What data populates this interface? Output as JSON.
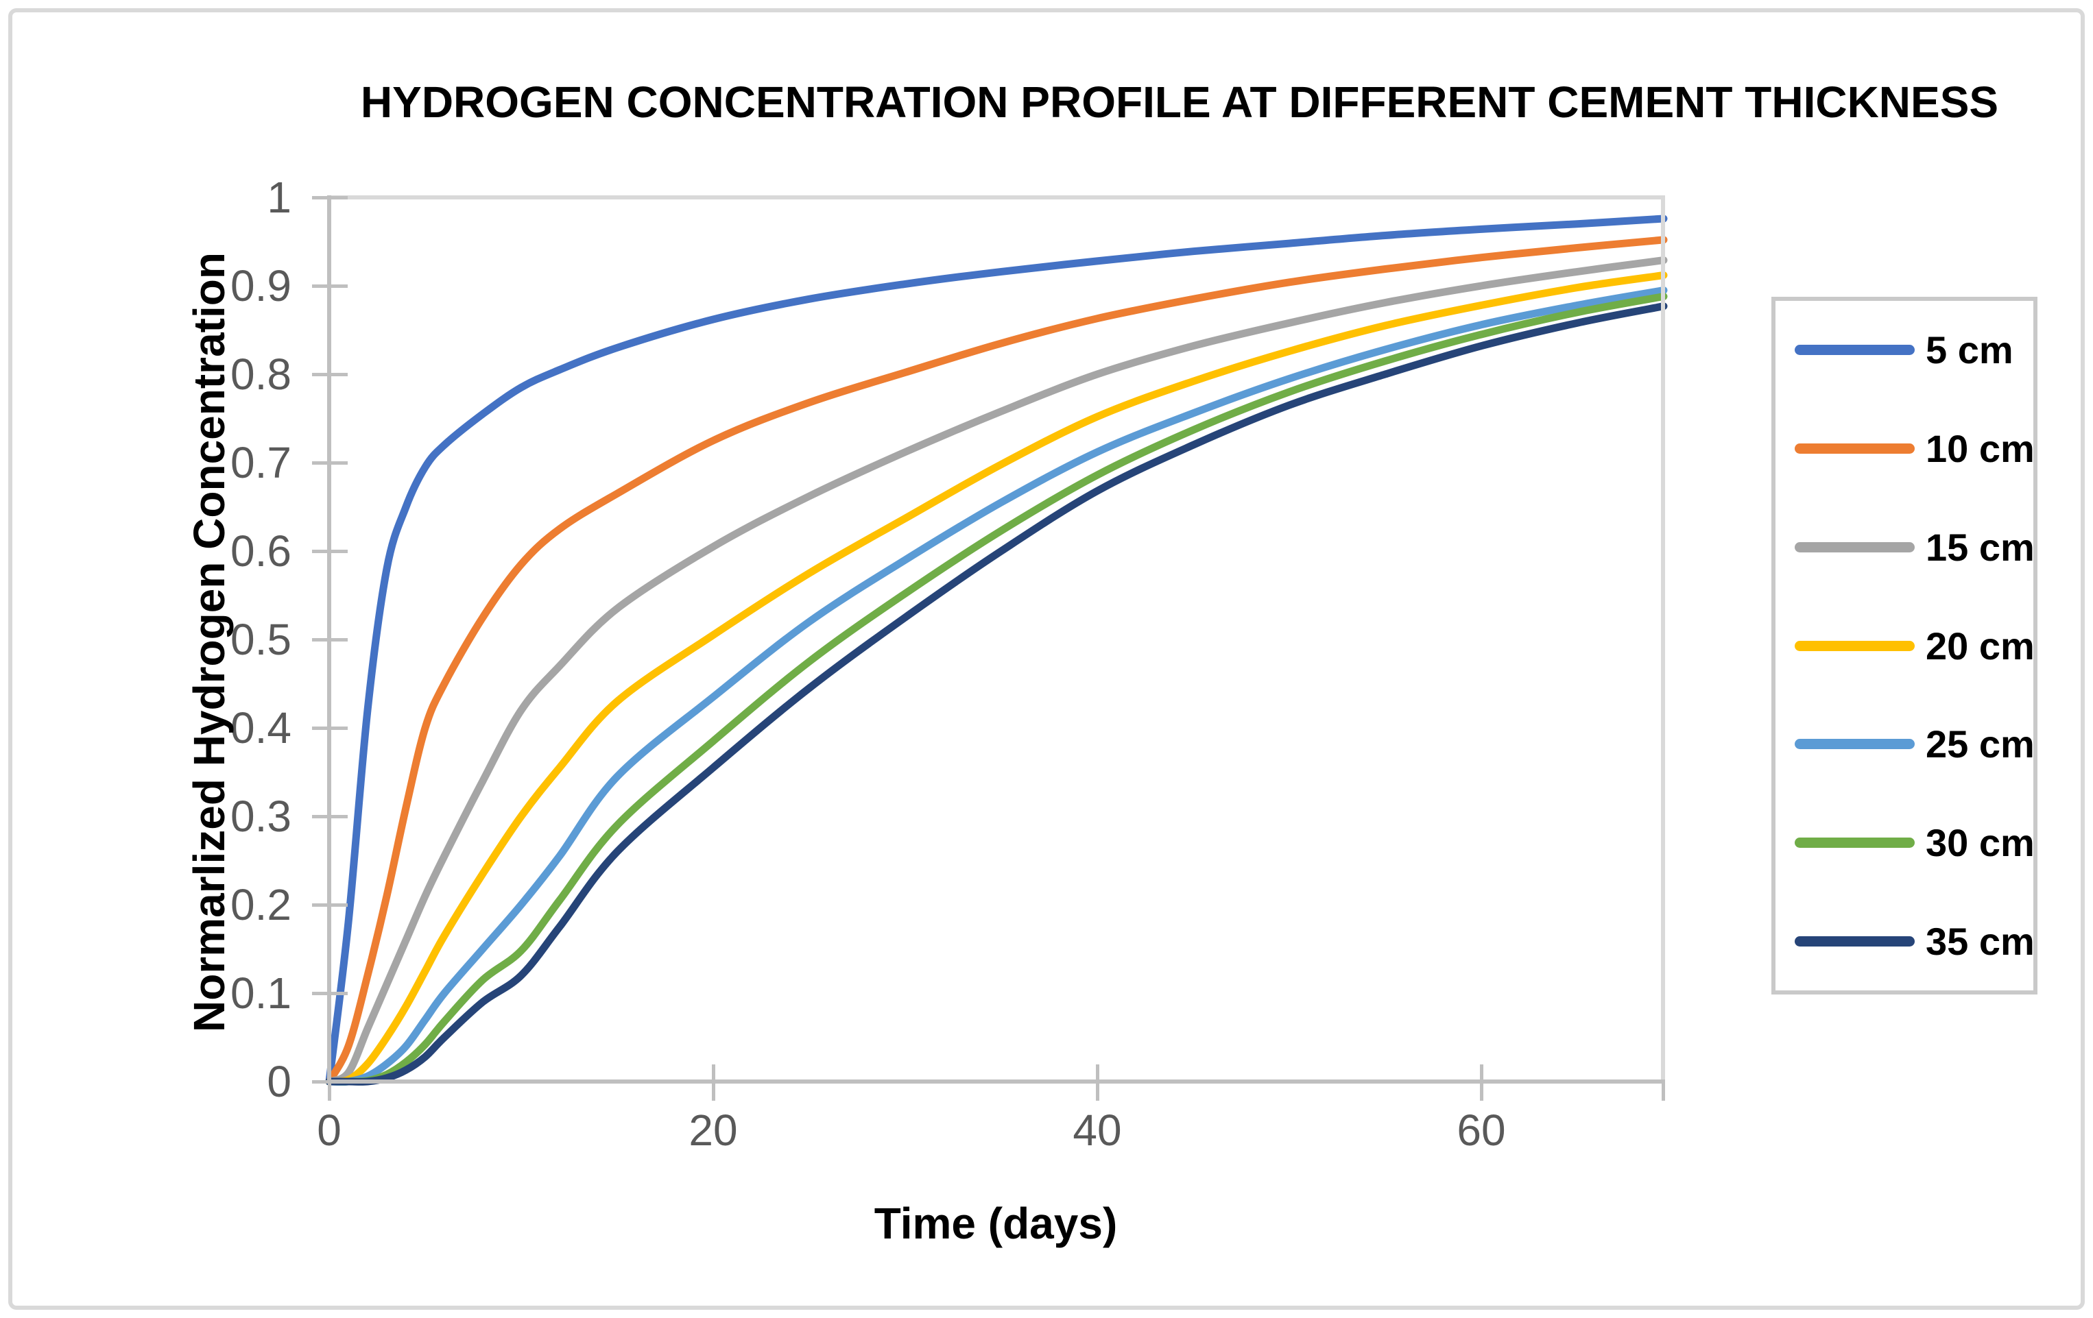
{
  "figure": {
    "title": "HYDROGEN CONCENTRATION PROFILE AT DIFFERENT CEMENT THICKNESS"
  },
  "axes": {
    "x": {
      "label": "Time (days)",
      "ticks": [
        "0",
        "20",
        "40",
        "60"
      ],
      "range": [
        0,
        69.5
      ]
    },
    "y": {
      "label": "Normarlized Hydrogen Concentration",
      "ticks": [
        "1",
        "0.9",
        "0.8",
        "0.7",
        "0.6",
        "0.5",
        "0.4",
        "0.3",
        "0.2",
        "0.1",
        "0"
      ],
      "range": [
        0,
        1
      ]
    }
  },
  "legend": {
    "items": [
      {
        "label": "5 cm",
        "color": "#4472C4"
      },
      {
        "label": "10 cm",
        "color": "#ED7D31"
      },
      {
        "label": "15 cm",
        "color": "#A5A5A5"
      },
      {
        "label": "20 cm",
        "color": "#FFC000"
      },
      {
        "label": "25 cm",
        "color": "#5B9BD5"
      },
      {
        "label": "30 cm",
        "color": "#70AD47"
      },
      {
        "label": "35 cm",
        "color": "#264478"
      }
    ]
  },
  "chart_data": {
    "type": "line",
    "title": "HYDROGEN CONCENTRATION PROFILE AT DIFFERENT CEMENT THICKNESS",
    "xlabel": "Time (days)",
    "ylabel": "Normarlized Hydrogen Concentration",
    "xlim": [
      0,
      69.5
    ],
    "ylim": [
      0,
      1
    ],
    "grid": false,
    "legend_position": "right",
    "x": [
      0,
      1,
      2,
      3,
      4,
      5,
      6,
      8,
      10,
      12,
      15,
      20,
      25,
      30,
      35,
      40,
      45,
      50,
      55,
      60,
      65,
      69.5
    ],
    "series": [
      {
        "name": "5 cm",
        "color": "#4472C4",
        "values": [
          0,
          0.18,
          0.42,
          0.58,
          0.65,
          0.695,
          0.72,
          0.755,
          0.785,
          0.805,
          0.83,
          0.862,
          0.885,
          0.902,
          0.916,
          0.928,
          0.939,
          0.948,
          0.957,
          0.964,
          0.97,
          0.976
        ]
      },
      {
        "name": "10 cm",
        "color": "#ED7D31",
        "values": [
          0,
          0.04,
          0.12,
          0.21,
          0.31,
          0.4,
          0.45,
          0.525,
          0.585,
          0.625,
          0.665,
          0.725,
          0.768,
          0.802,
          0.835,
          0.863,
          0.885,
          0.904,
          0.919,
          0.932,
          0.943,
          0.952
        ]
      },
      {
        "name": "15 cm",
        "color": "#A5A5A5",
        "values": [
          0,
          0.01,
          0.06,
          0.11,
          0.16,
          0.21,
          0.255,
          0.34,
          0.42,
          0.47,
          0.535,
          0.605,
          0.662,
          0.712,
          0.758,
          0.8,
          0.832,
          0.858,
          0.881,
          0.9,
          0.916,
          0.929
        ]
      },
      {
        "name": "20 cm",
        "color": "#FFC000",
        "values": [
          0,
          0.002,
          0.02,
          0.05,
          0.085,
          0.125,
          0.165,
          0.235,
          0.3,
          0.355,
          0.43,
          0.505,
          0.575,
          0.637,
          0.698,
          0.752,
          0.792,
          0.826,
          0.855,
          0.878,
          0.898,
          0.912
        ]
      },
      {
        "name": "25 cm",
        "color": "#5B9BD5",
        "values": [
          0,
          0,
          0.006,
          0.02,
          0.04,
          0.07,
          0.1,
          0.15,
          0.2,
          0.255,
          0.345,
          0.435,
          0.52,
          0.59,
          0.655,
          0.712,
          0.756,
          0.795,
          0.828,
          0.856,
          0.878,
          0.895
        ]
      },
      {
        "name": "30 cm",
        "color": "#70AD47",
        "values": [
          0,
          0,
          0.001,
          0.008,
          0.022,
          0.042,
          0.068,
          0.115,
          0.148,
          0.205,
          0.29,
          0.385,
          0.475,
          0.552,
          0.623,
          0.686,
          0.737,
          0.78,
          0.815,
          0.845,
          0.87,
          0.888
        ]
      },
      {
        "name": "35 cm",
        "color": "#264478",
        "values": [
          0,
          0,
          0,
          0.004,
          0.013,
          0.028,
          0.05,
          0.09,
          0.12,
          0.175,
          0.26,
          0.355,
          0.445,
          0.525,
          0.6,
          0.668,
          0.72,
          0.765,
          0.8,
          0.832,
          0.858,
          0.877
        ]
      }
    ]
  }
}
